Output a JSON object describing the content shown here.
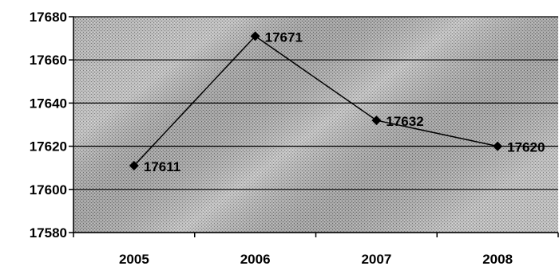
{
  "chart_data": {
    "type": "line",
    "categories": [
      "2005",
      "2006",
      "2007",
      "2008"
    ],
    "series": [
      {
        "values": [
          17611,
          17671,
          17632,
          17620
        ]
      }
    ],
    "data_labels": [
      "17611",
      "17671",
      "17632",
      "17620"
    ],
    "ylim": [
      17580,
      17680
    ],
    "y_ticks": [
      "17580",
      "17600",
      "17620",
      "17640",
      "17660",
      "17680"
    ],
    "title": "",
    "xlabel": "",
    "ylabel": "",
    "grid": true,
    "legend": "none",
    "colors": {
      "line": "#000000",
      "marker": "#000000",
      "plot_background": "#a8a8a8"
    }
  }
}
